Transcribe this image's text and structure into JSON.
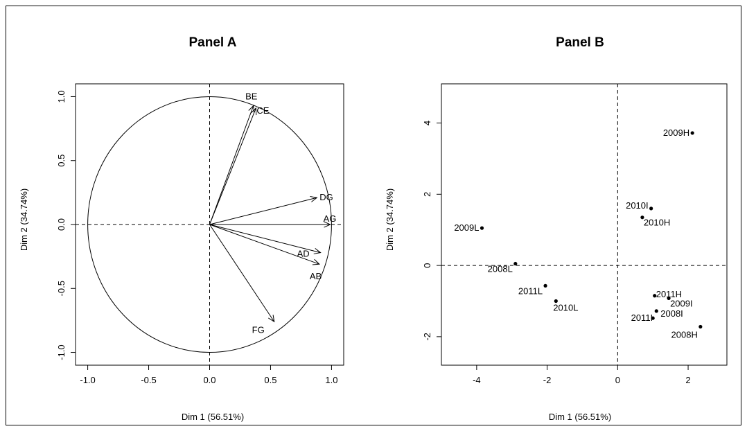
{
  "chart_data": [
    {
      "type": "scatter",
      "subtype": "correlation-circle",
      "title": "Panel A",
      "xlabel": "Dim 1 (56.51%)",
      "ylabel": "Dim 2 (34.74%)",
      "xlim": [
        -1.1,
        1.1
      ],
      "ylim": [
        -1.1,
        1.1
      ],
      "xticks": [
        -1.0,
        -0.5,
        0.0,
        0.5,
        1.0
      ],
      "yticks": [
        -1.0,
        -0.5,
        0.0,
        0.5,
        1.0
      ],
      "xtick_labels": [
        "-1.0",
        "-0.5",
        "0.0",
        "0.5",
        "1.0"
      ],
      "ytick_labels": [
        "-1.0",
        "-0.5",
        "0.0",
        "0.5",
        "1.0"
      ],
      "unit_circle": true,
      "reference_lines": "dashed at x=0 and y=0",
      "vectors": [
        {
          "label": "BE",
          "x": 0.36,
          "y": 0.93
        },
        {
          "label": "CE",
          "x": 0.38,
          "y": 0.91
        },
        {
          "label": "DG",
          "x": 0.88,
          "y": 0.21
        },
        {
          "label": "AG",
          "x": 0.99,
          "y": 0.0
        },
        {
          "label": "AD",
          "x": 0.91,
          "y": -0.22
        },
        {
          "label": "AB",
          "x": 0.9,
          "y": -0.31
        },
        {
          "label": "FG",
          "x": 0.53,
          "y": -0.76
        }
      ]
    },
    {
      "type": "scatter",
      "title": "Panel B",
      "xlabel": "Dim 1 (56.51%)",
      "ylabel": "Dim 2 (34.74%)",
      "xlim": [
        -5.0,
        3.1
      ],
      "ylim": [
        -2.8,
        5.1
      ],
      "xticks": [
        -4,
        -2,
        0,
        2
      ],
      "yticks": [
        -2,
        0,
        2,
        4
      ],
      "xtick_labels": [
        "-4",
        "-2",
        "0",
        "2"
      ],
      "ytick_labels": [
        "-2",
        "0",
        "2",
        "4"
      ],
      "reference_lines": "dashed at x=0 and y=0",
      "points": [
        {
          "label": "2009H",
          "x": 2.12,
          "y": 3.72
        },
        {
          "label": "2010I",
          "x": 0.95,
          "y": 1.6
        },
        {
          "label": "2010H",
          "x": 0.7,
          "y": 1.35
        },
        {
          "label": "2009L",
          "x": -3.85,
          "y": 1.05
        },
        {
          "label": "2008L",
          "x": -2.9,
          "y": 0.05
        },
        {
          "label": "2011L",
          "x": -2.05,
          "y": -0.57
        },
        {
          "label": "2010L",
          "x": -1.75,
          "y": -1.0
        },
        {
          "label": "2011H",
          "x": 1.05,
          "y": -0.85
        },
        {
          "label": "2009I",
          "x": 1.45,
          "y": -0.92
        },
        {
          "label": "2011I",
          "x": 1.0,
          "y": -1.48
        },
        {
          "label": "2008I",
          "x": 1.1,
          "y": -1.28
        },
        {
          "label": "2008H",
          "x": 2.35,
          "y": -1.72
        }
      ]
    }
  ]
}
